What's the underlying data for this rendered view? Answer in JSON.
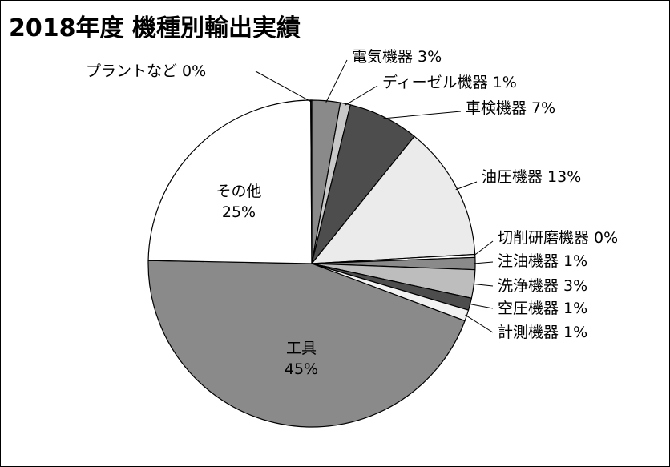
{
  "chart_data": {
    "type": "pie",
    "title": "2018年度 機種別輸出実績",
    "slices": [
      {
        "label": "電気機器",
        "value_label": "3%",
        "value": 2.8,
        "color": "#8a8a8a"
      },
      {
        "label": "ディーゼル機器",
        "value_label": "1%",
        "value": 1.0,
        "color": "#c8c8c8"
      },
      {
        "label": "車検機器",
        "value_label": "7%",
        "value": 7.0,
        "color": "#4d4d4d"
      },
      {
        "label": "油圧機器",
        "value_label": "13%",
        "value": 13.3,
        "color": "#ebebeb"
      },
      {
        "label": "切削研磨機器",
        "value_label": "0%",
        "value": 0.3,
        "color": "#ffffff"
      },
      {
        "label": "注油機器",
        "value_label": "1%",
        "value": 1.2,
        "color": "#8a8a8a"
      },
      {
        "label": "洗浄機器",
        "value_label": "3%",
        "value": 2.8,
        "color": "#bdbdbd"
      },
      {
        "label": "空圧機器",
        "value_label": "1%",
        "value": 1.2,
        "color": "#4d4d4d"
      },
      {
        "label": "計測機器",
        "value_label": "1%",
        "value": 1.1,
        "color": "#f2f2f2"
      },
      {
        "label": "工具",
        "value_label": "45%",
        "value": 44.6,
        "color": "#8a8a8a"
      },
      {
        "label": "その他",
        "value_label": "25%",
        "value": 24.6,
        "color": "#ffffff"
      },
      {
        "label": "プラントなど",
        "value_label": "0%",
        "value": 0.1,
        "color": "#ffffff"
      }
    ]
  }
}
